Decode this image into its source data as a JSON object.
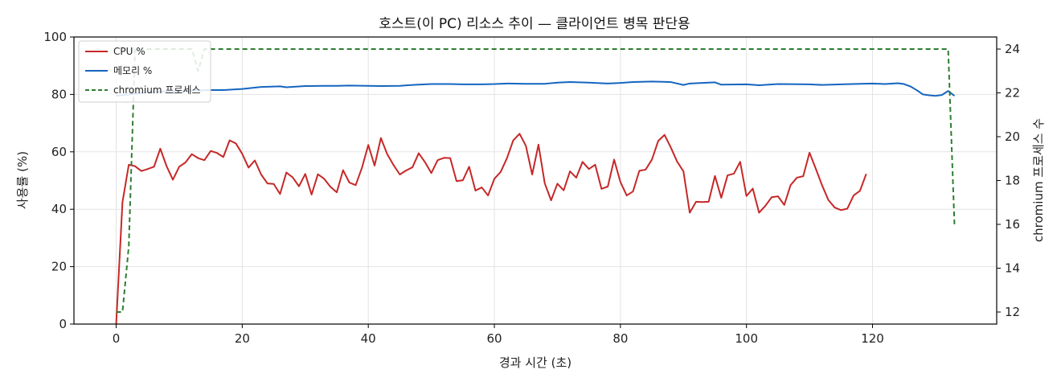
{
  "chart_data": {
    "type": "line",
    "title": "호스트(이 PC) 리소스 추이 — 클라이언트 병목 판단용",
    "xlabel": "경과 시간 (초)",
    "ylabel": "사용률 (%)",
    "y2label": "chromium 프로세스 수",
    "xlim": [
      -6.7,
      139.7
    ],
    "ylim": [
      0,
      100
    ],
    "y2lim": [
      11.45,
      24.55
    ],
    "xticks": [
      0,
      20,
      40,
      60,
      80,
      100,
      120
    ],
    "yticks": [
      0,
      20,
      40,
      60,
      80,
      100
    ],
    "y2ticks": [
      12,
      14,
      16,
      18,
      20,
      22,
      24
    ],
    "grid": true,
    "legend_position": "top-left",
    "series": [
      {
        "name": "CPU %",
        "axis": "left",
        "color": "#c62828",
        "style": "solid",
        "points": [
          [
            0,
            0
          ],
          [
            1,
            42.5
          ],
          [
            2,
            55.5
          ],
          [
            3,
            55
          ],
          [
            4,
            53.3
          ],
          [
            5,
            54
          ],
          [
            6,
            54.8
          ],
          [
            7,
            61.1
          ],
          [
            8,
            55
          ],
          [
            9,
            50.3
          ],
          [
            10,
            54.8
          ],
          [
            11,
            56.3
          ],
          [
            12,
            59.2
          ],
          [
            13,
            57.8
          ],
          [
            14,
            57.1
          ],
          [
            15,
            60.3
          ],
          [
            16,
            59.6
          ],
          [
            17,
            58.2
          ],
          [
            18,
            64
          ],
          [
            19,
            62.9
          ],
          [
            20,
            59.3
          ],
          [
            21,
            54.5
          ],
          [
            22,
            57
          ],
          [
            23,
            52.1
          ],
          [
            24,
            49
          ],
          [
            25,
            48.8
          ],
          [
            26,
            45.3
          ],
          [
            27,
            52.8
          ],
          [
            28,
            51.1
          ],
          [
            29,
            48
          ],
          [
            30,
            52.3
          ],
          [
            31,
            45.1
          ],
          [
            32,
            52.2
          ],
          [
            33,
            50.6
          ],
          [
            34,
            47.8
          ],
          [
            35,
            45.9
          ],
          [
            36,
            53.6
          ],
          [
            37,
            49.3
          ],
          [
            38,
            48.4
          ],
          [
            39,
            54.5
          ],
          [
            40,
            62.4
          ],
          [
            41,
            55.2
          ],
          [
            42,
            64.8
          ],
          [
            43,
            59.2
          ],
          [
            44,
            55.4
          ],
          [
            45,
            52.1
          ],
          [
            46,
            53.5
          ],
          [
            47,
            54.6
          ],
          [
            48,
            59.5
          ],
          [
            49,
            56.4
          ],
          [
            50,
            52.6
          ],
          [
            51,
            57.1
          ],
          [
            52,
            57.9
          ],
          [
            53,
            57.8
          ],
          [
            54,
            49.8
          ],
          [
            55,
            50.1
          ],
          [
            56,
            54.8
          ],
          [
            57,
            46.5
          ],
          [
            58,
            47.6
          ],
          [
            59,
            44.8
          ],
          [
            60,
            50.6
          ],
          [
            61,
            53
          ],
          [
            62,
            57.8
          ],
          [
            63,
            64
          ],
          [
            64,
            66.3
          ],
          [
            65,
            62.1
          ],
          [
            66,
            52.1
          ],
          [
            67,
            62.5
          ],
          [
            68,
            49
          ],
          [
            69,
            43.1
          ],
          [
            70,
            48.9
          ],
          [
            71,
            46.6
          ],
          [
            72,
            53.2
          ],
          [
            73,
            51
          ],
          [
            74,
            56.5
          ],
          [
            75,
            54
          ],
          [
            76,
            55.5
          ],
          [
            77,
            47.1
          ],
          [
            78,
            47.9
          ],
          [
            79,
            57.3
          ],
          [
            80,
            49.5
          ],
          [
            81,
            44.8
          ],
          [
            82,
            46.2
          ],
          [
            83,
            53.4
          ],
          [
            84,
            53.8
          ],
          [
            85,
            57.3
          ],
          [
            86,
            63.8
          ],
          [
            87,
            65.9
          ],
          [
            88,
            61.5
          ],
          [
            89,
            56.6
          ],
          [
            90,
            53.2
          ],
          [
            91,
            38.8
          ],
          [
            92,
            42.6
          ],
          [
            93,
            42.5
          ],
          [
            94,
            42.6
          ],
          [
            95,
            51.6
          ],
          [
            96,
            44
          ],
          [
            97,
            51.8
          ],
          [
            98,
            52.4
          ],
          [
            99,
            56.5
          ],
          [
            100,
            44.6
          ],
          [
            101,
            47.2
          ],
          [
            102,
            38.8
          ],
          [
            103,
            41.2
          ],
          [
            104,
            44.2
          ],
          [
            105,
            44.5
          ],
          [
            106,
            41.5
          ],
          [
            107,
            48.4
          ],
          [
            108,
            51
          ],
          [
            109,
            51.5
          ],
          [
            110,
            59.7
          ],
          [
            111,
            54.1
          ],
          [
            112,
            48.3
          ],
          [
            113,
            43.2
          ],
          [
            114,
            40.6
          ],
          [
            115,
            39.7
          ],
          [
            116,
            40.2
          ],
          [
            117,
            44.8
          ],
          [
            118,
            46.4
          ],
          [
            119,
            52.3
          ]
        ]
      },
      {
        "name": "메모리 %",
        "axis": "left",
        "color": "#1565c0",
        "style": "solid",
        "points": [
          [
            0,
            79.5
          ],
          [
            2,
            80
          ],
          [
            5,
            80.7
          ],
          [
            10,
            81.2
          ],
          [
            15,
            81.5
          ],
          [
            17,
            81.5
          ],
          [
            20,
            81.9
          ],
          [
            23,
            82.6
          ],
          [
            26,
            82.8
          ],
          [
            27,
            82.5
          ],
          [
            30,
            82.9
          ],
          [
            33,
            83
          ],
          [
            35,
            83
          ],
          [
            37,
            83.1
          ],
          [
            40,
            83
          ],
          [
            42,
            82.9
          ],
          [
            45,
            83
          ],
          [
            47,
            83.3
          ],
          [
            50,
            83.6
          ],
          [
            53,
            83.6
          ],
          [
            55,
            83.5
          ],
          [
            58,
            83.5
          ],
          [
            60,
            83.6
          ],
          [
            62,
            83.8
          ],
          [
            65,
            83.7
          ],
          [
            68,
            83.7
          ],
          [
            70,
            84.1
          ],
          [
            72,
            84.3
          ],
          [
            75,
            84.1
          ],
          [
            78,
            83.8
          ],
          [
            80,
            84
          ],
          [
            82,
            84.3
          ],
          [
            85,
            84.5
          ],
          [
            88,
            84.3
          ],
          [
            90,
            83.3
          ],
          [
            91,
            83.8
          ],
          [
            95,
            84.2
          ],
          [
            96,
            83.4
          ],
          [
            100,
            83.5
          ],
          [
            102,
            83.2
          ],
          [
            105,
            83.6
          ],
          [
            110,
            83.5
          ],
          [
            112,
            83.3
          ],
          [
            115,
            83.5
          ],
          [
            118,
            83.7
          ],
          [
            120,
            83.8
          ],
          [
            122,
            83.6
          ],
          [
            124,
            83.9
          ],
          [
            125,
            83.6
          ],
          [
            126,
            82.8
          ],
          [
            127,
            81.5
          ],
          [
            128,
            80
          ],
          [
            129,
            79.7
          ],
          [
            130,
            79.5
          ],
          [
            131,
            79.8
          ],
          [
            132,
            81.2
          ],
          [
            133,
            79.5
          ]
        ]
      },
      {
        "name": "chromium 프로세스",
        "axis": "right",
        "color": "#2e7d32",
        "style": "dashed",
        "points": [
          [
            0,
            12
          ],
          [
            1,
            12
          ],
          [
            2,
            15
          ],
          [
            3,
            24
          ],
          [
            4,
            24
          ],
          [
            12,
            24
          ],
          [
            13,
            23
          ],
          [
            14,
            24
          ],
          [
            131,
            24
          ],
          [
            132,
            24
          ],
          [
            133,
            16
          ]
        ]
      }
    ]
  }
}
